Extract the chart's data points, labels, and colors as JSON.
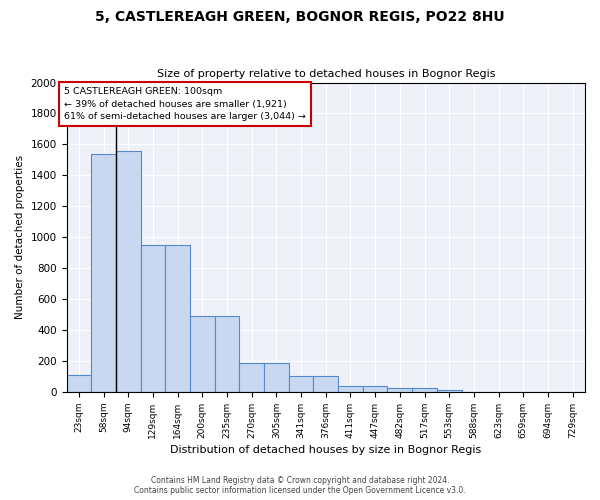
{
  "title": "5, CASTLEREAGH GREEN, BOGNOR REGIS, PO22 8HU",
  "subtitle": "Size of property relative to detached houses in Bognor Regis",
  "xlabel": "Distribution of detached houses by size in Bognor Regis",
  "ylabel": "Number of detached properties",
  "bin_labels": [
    "23sqm",
    "58sqm",
    "94sqm",
    "129sqm",
    "164sqm",
    "200sqm",
    "235sqm",
    "270sqm",
    "305sqm",
    "341sqm",
    "376sqm",
    "411sqm",
    "447sqm",
    "482sqm",
    "517sqm",
    "553sqm",
    "588sqm",
    "623sqm",
    "659sqm",
    "694sqm",
    "729sqm"
  ],
  "bar_heights": [
    110,
    1535,
    1560,
    950,
    950,
    490,
    490,
    185,
    185,
    100,
    100,
    40,
    40,
    25,
    25,
    15,
    0,
    0,
    0,
    0,
    0
  ],
  "bar_color": "#c8d8f0",
  "bar_edge_color": "#5588cc",
  "background_color": "#eef2f8",
  "ylim": [
    0,
    2000
  ],
  "yticks": [
    0,
    200,
    400,
    600,
    800,
    1000,
    1200,
    1400,
    1600,
    1800,
    2000
  ],
  "property_line_x": 2,
  "annotation_line1": "5 CASTLEREAGH GREEN: 100sqm",
  "annotation_line2": "← 39% of detached houses are smaller (1,921)",
  "annotation_line3": "61% of semi-detached houses are larger (3,044) →",
  "annotation_box_color": "#ffffff",
  "annotation_box_edge_color": "#cc0000",
  "footer_line1": "Contains HM Land Registry data © Crown copyright and database right 2024.",
  "footer_line2": "Contains public sector information licensed under the Open Government Licence v3.0."
}
